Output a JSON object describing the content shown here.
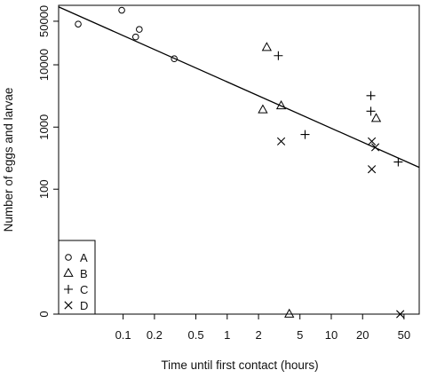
{
  "chart_data": {
    "type": "scatter",
    "title": "",
    "xlabel": "Time until first contact (hours)",
    "ylabel": "Number of eggs and larvae",
    "x_scale": "log",
    "y_scale": "log(y+1)",
    "xlim": [
      0.024,
      70
    ],
    "ylim": [
      0,
      90000
    ],
    "x_ticks": [
      {
        "value": 0.1,
        "label": "0.1"
      },
      {
        "value": 0.2,
        "label": "0.2"
      },
      {
        "value": 0.5,
        "label": "0.5"
      },
      {
        "value": 1,
        "label": "1"
      },
      {
        "value": 2,
        "label": "2"
      },
      {
        "value": 5,
        "label": "5"
      },
      {
        "value": 10,
        "label": "10"
      },
      {
        "value": 20,
        "label": "20"
      },
      {
        "value": 50,
        "label": "50"
      }
    ],
    "y_ticks": [
      {
        "value": 0,
        "label": "0"
      },
      {
        "value": 100,
        "label": "100"
      },
      {
        "value": 1000,
        "label": "1000"
      },
      {
        "value": 10000,
        "label": "10000"
      },
      {
        "value": 50000,
        "label": "50000"
      }
    ],
    "series": [
      {
        "name": "A",
        "marker": "circle",
        "points": [
          {
            "x": 0.037,
            "y": 45000
          },
          {
            "x": 0.097,
            "y": 75000
          },
          {
            "x": 0.132,
            "y": 28000
          },
          {
            "x": 0.143,
            "y": 37000
          },
          {
            "x": 0.31,
            "y": 12500
          }
        ]
      },
      {
        "name": "B",
        "marker": "triangle",
        "points": [
          {
            "x": 2.2,
            "y": 1900
          },
          {
            "x": 2.4,
            "y": 19000
          },
          {
            "x": 3.3,
            "y": 2200
          },
          {
            "x": 3.95,
            "y": 0
          },
          {
            "x": 27,
            "y": 1380
          }
        ]
      },
      {
        "name": "C",
        "marker": "plus",
        "points": [
          {
            "x": 3.1,
            "y": 14000
          },
          {
            "x": 5.6,
            "y": 760
          },
          {
            "x": 24,
            "y": 3200
          },
          {
            "x": 24,
            "y": 1800
          },
          {
            "x": 44,
            "y": 275
          }
        ]
      },
      {
        "name": "D",
        "marker": "x",
        "points": [
          {
            "x": 3.3,
            "y": 590
          },
          {
            "x": 24.5,
            "y": 590
          },
          {
            "x": 26.5,
            "y": 475
          },
          {
            "x": 24.5,
            "y": 210
          },
          {
            "x": 46,
            "y": 0
          }
        ]
      }
    ],
    "fit_line": {
      "x": [
        0.024,
        70
      ],
      "y": [
        85000,
        225
      ]
    },
    "grid": false,
    "legend_position": "bottom-left",
    "legend_entries": [
      "A",
      "B",
      "C",
      "D"
    ]
  }
}
